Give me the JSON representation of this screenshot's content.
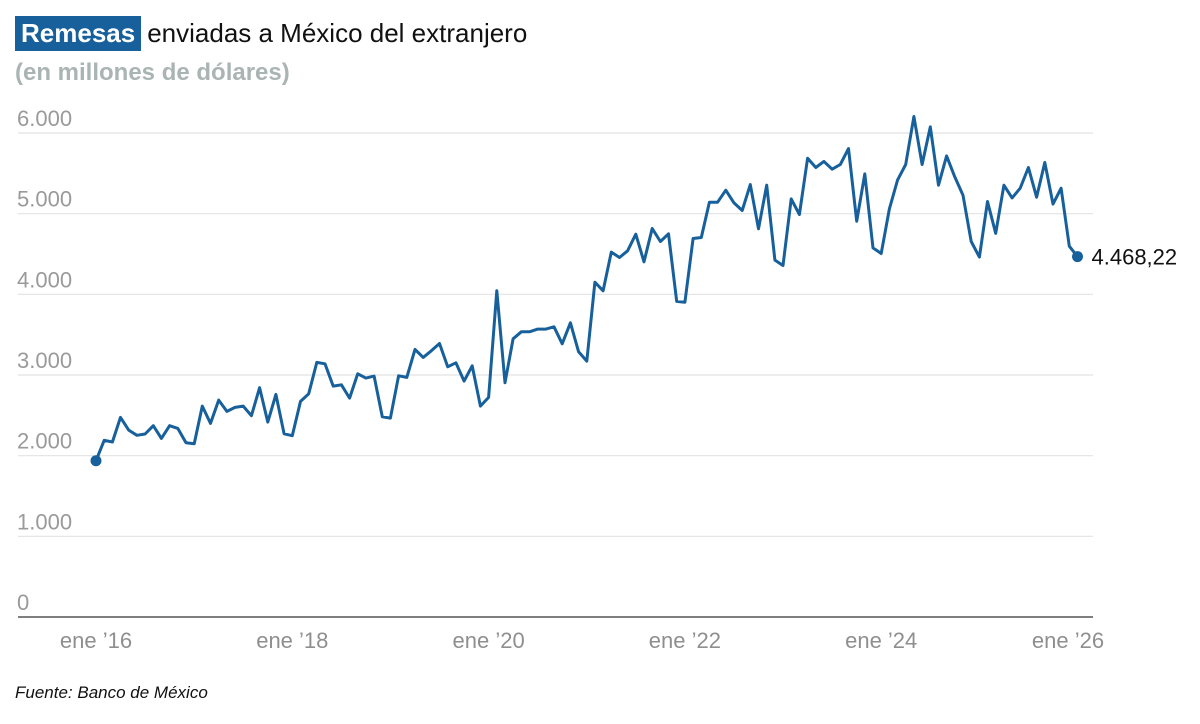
{
  "chart_data": {
    "type": "line",
    "title_highlight": "Remesas",
    "title": "enviadas a México del extranjero",
    "subtitle": "(en millones de dólares)",
    "source": "Fuente: Banco de México",
    "ylim": [
      0,
      6000
    ],
    "yticks": [
      0,
      1000,
      2000,
      3000,
      4000,
      5000,
      6000
    ],
    "ytick_labels": [
      "0",
      "1.000",
      "2.000",
      "3.000",
      "4.000",
      "5.000",
      "6.000"
    ],
    "xtick_labels": [
      "ene ’16",
      "ene ’18",
      "ene ’20",
      "ene ’22",
      "ene ’24",
      "ene ’26"
    ],
    "grid": true,
    "line_color": "#17609b",
    "end_label": "4.468,22",
    "x": [
      "2016-01",
      "2016-02",
      "2016-03",
      "2016-04",
      "2016-05",
      "2016-06",
      "2016-07",
      "2016-08",
      "2016-09",
      "2016-10",
      "2016-11",
      "2016-12",
      "2017-01",
      "2017-02",
      "2017-03",
      "2017-04",
      "2017-05",
      "2017-06",
      "2017-07",
      "2017-08",
      "2017-09",
      "2017-10",
      "2017-11",
      "2017-12",
      "2018-01",
      "2018-02",
      "2018-03",
      "2018-04",
      "2018-05",
      "2018-06",
      "2018-07",
      "2018-08",
      "2018-09",
      "2018-10",
      "2018-11",
      "2018-12",
      "2019-01",
      "2019-02",
      "2019-03",
      "2019-04",
      "2019-05",
      "2019-06",
      "2019-07",
      "2019-08",
      "2019-09",
      "2019-10",
      "2019-11",
      "2019-12",
      "2020-01",
      "2020-02",
      "2020-03",
      "2020-04",
      "2020-05",
      "2020-06",
      "2020-07",
      "2020-08",
      "2020-09",
      "2020-10",
      "2020-11",
      "2020-12",
      "2021-01",
      "2021-02",
      "2021-03",
      "2021-04",
      "2021-05",
      "2021-06",
      "2021-07",
      "2021-08",
      "2021-09",
      "2021-10",
      "2021-11",
      "2021-12",
      "2022-01",
      "2022-02",
      "2022-03",
      "2022-04",
      "2022-05",
      "2022-06",
      "2022-07",
      "2022-08",
      "2022-09",
      "2022-10",
      "2022-11",
      "2022-12",
      "2023-01",
      "2023-02",
      "2023-03",
      "2023-04",
      "2023-05",
      "2023-06",
      "2023-07",
      "2023-08",
      "2023-09",
      "2023-10",
      "2023-11",
      "2023-12",
      "2024-01",
      "2024-02",
      "2024-03",
      "2024-04",
      "2024-05",
      "2024-06",
      "2024-07",
      "2024-08",
      "2024-09",
      "2024-10",
      "2024-11",
      "2024-12",
      "2025-01",
      "2025-02",
      "2025-03",
      "2025-04",
      "2025-05",
      "2025-06",
      "2025-07",
      "2025-08",
      "2025-09",
      "2025-10",
      "2025-11",
      "2025-12",
      "2026-01"
    ],
    "values": [
      1937,
      2190,
      2170,
      2475,
      2317,
      2252,
      2268,
      2371,
      2214,
      2371,
      2338,
      2160,
      2147,
      2615,
      2400,
      2689,
      2549,
      2598,
      2615,
      2495,
      2842,
      2416,
      2760,
      2271,
      2247,
      2673,
      2767,
      3156,
      3139,
      2862,
      2879,
      2714,
      3015,
      2962,
      2986,
      2482,
      2466,
      2990,
      2970,
      3317,
      3218,
      3300,
      3391,
      3102,
      3151,
      2924,
      3114,
      2615,
      2722,
      4044,
      2904,
      3449,
      3536,
      3536,
      3569,
      3569,
      3598,
      3387,
      3647,
      3288,
      3172,
      4151,
      4044,
      4523,
      4457,
      4540,
      4746,
      4403,
      4816,
      4655,
      4750,
      3912,
      3903,
      4692,
      4705,
      5142,
      5142,
      5291,
      5134,
      5039,
      5360,
      4812,
      5353,
      4424,
      4358,
      5183,
      4990,
      5688,
      5572,
      5648,
      5551,
      5609,
      5807,
      4907,
      5493,
      4576,
      4506,
      5060,
      5419,
      5609,
      6204,
      5609,
      6076,
      5353,
      5716,
      5456,
      5229,
      4655,
      4461,
      5151,
      4755,
      5353,
      5196,
      5316,
      5572,
      5204,
      5634,
      5118,
      5316,
      4597,
      4468.22
    ]
  }
}
